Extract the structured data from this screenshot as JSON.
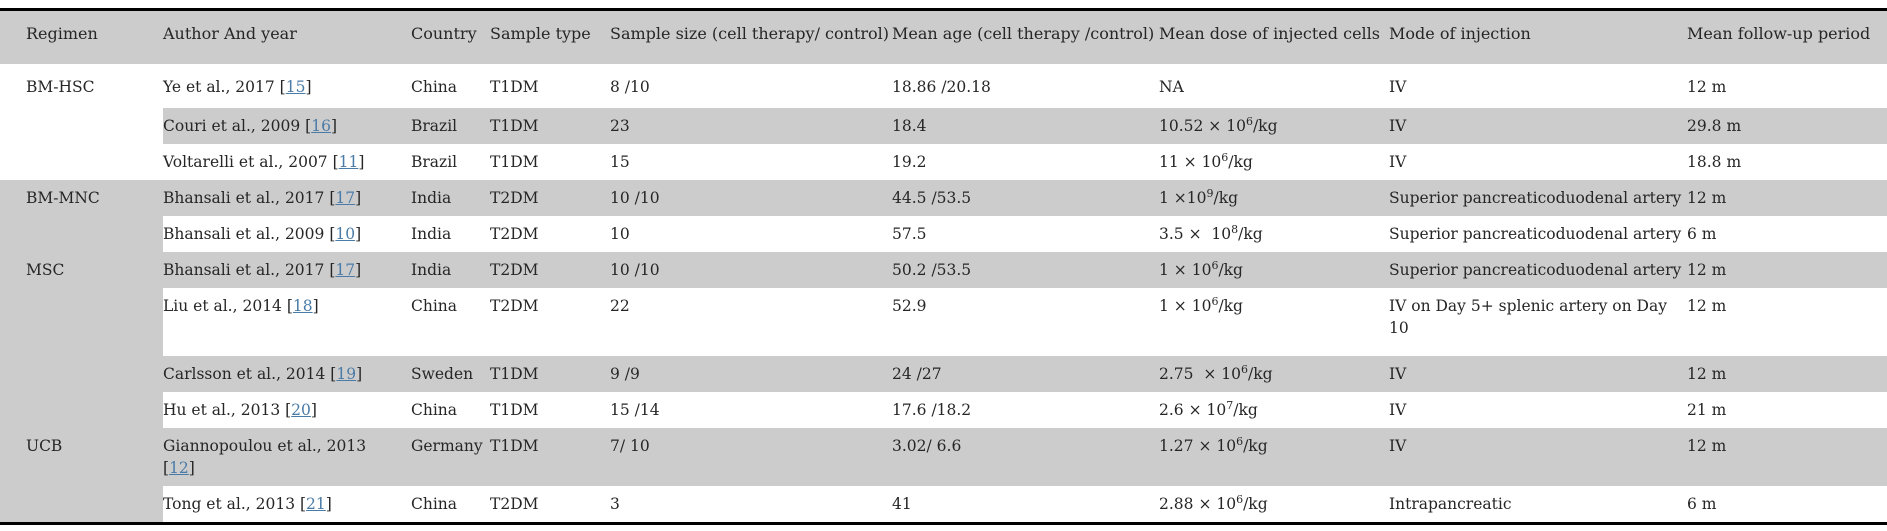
{
  "link_color": "#4a7ba6",
  "stripe_color": "#cccccc",
  "table": {
    "columns": [
      {
        "key": "regimen",
        "label": "Regimen"
      },
      {
        "key": "author",
        "label": "Author And year"
      },
      {
        "key": "country",
        "label": "Country"
      },
      {
        "key": "sample_type",
        "label": "Sample type"
      },
      {
        "key": "sample_size",
        "label": "Sample size (cell therapy/ control)"
      },
      {
        "key": "mean_age",
        "label": "Mean age (cell therapy /control)"
      },
      {
        "key": "mean_dose",
        "label": "Mean dose of injected cells"
      },
      {
        "key": "mode",
        "label": "Mode of injection"
      },
      {
        "key": "follow_up",
        "label": "Mean follow-up period"
      }
    ],
    "groups": [
      {
        "regimen": "BM-HSC",
        "regimen_shade": "white",
        "rows": [
          {
            "shade": "white",
            "author": "Ye et al., 2017",
            "ref": "15",
            "ref_break": false,
            "country": "China",
            "sample_type": "T1DM",
            "sample_size": "8 /10",
            "mean_age": "18.86 /20.18",
            "dose_base": "NA",
            "dose_exp": "",
            "dose_suffix": "",
            "mode": "IV",
            "mode2": "",
            "follow_up": "12 m"
          },
          {
            "shade": "gray",
            "author": "Couri et al., 2009",
            "ref": "16",
            "ref_break": false,
            "country": "Brazil",
            "sample_type": "T1DM",
            "sample_size": "23",
            "mean_age": "18.4",
            "dose_base": "10.52 × 10",
            "dose_exp": "6",
            "dose_suffix": "/kg",
            "mode": "IV",
            "mode2": "",
            "follow_up": "29.8 m"
          },
          {
            "shade": "white",
            "author": "Voltarelli et al., 2007",
            "ref": "11",
            "ref_break": false,
            "country": "Brazil",
            "sample_type": "T1DM",
            "sample_size": "15",
            "mean_age": "19.2",
            "dose_base": "11 × 10",
            "dose_exp": "6",
            "dose_suffix": "/kg",
            "mode": "IV",
            "mode2": "",
            "follow_up": "18.8 m"
          }
        ]
      },
      {
        "regimen": "BM-MNC",
        "regimen_shade": "gray",
        "rows": [
          {
            "shade": "gray",
            "author": "Bhansali et al., 2017",
            "ref": "17",
            "ref_break": false,
            "country": "India",
            "sample_type": "T2DM",
            "sample_size": "10 /10",
            "mean_age": "44.5 /53.5",
            "dose_base": "1 ×10",
            "dose_exp": "9",
            "dose_suffix": "/kg",
            "mode": "Superior pancreaticoduodenal artery",
            "mode2": "",
            "follow_up": "12 m"
          },
          {
            "shade": "white",
            "author": "Bhansali et al., 2009",
            "ref": "10",
            "ref_break": false,
            "country": "India",
            "sample_type": "T2DM",
            "sample_size": "10",
            "mean_age": "57.5",
            "dose_base": "3.5 ×  10",
            "dose_exp": "8",
            "dose_suffix": "/kg",
            "mode": "Superior pancreaticoduodenal artery",
            "mode2": "",
            "follow_up": "6 m"
          }
        ]
      },
      {
        "regimen": "MSC",
        "regimen_shade": "gray",
        "rows": [
          {
            "shade": "gray",
            "author": "Bhansali et al., 2017",
            "ref": "17",
            "ref_break": false,
            "country": "India",
            "sample_type": "T2DM",
            "sample_size": "10 /10",
            "mean_age": "50.2 /53.5",
            "dose_base": "1 × 10",
            "dose_exp": "6",
            "dose_suffix": "/kg",
            "mode": "Superior pancreaticoduodenal artery",
            "mode2": "",
            "follow_up": "12 m"
          },
          {
            "shade": "white",
            "author": "Liu et al., 2014",
            "ref": "18",
            "ref_break": false,
            "country": "China",
            "sample_type": "T2DM",
            "sample_size": "22",
            "mean_age": "52.9",
            "dose_base": "1 × 10",
            "dose_exp": "6",
            "dose_suffix": "/kg",
            "mode": "IV on Day 5+ splenic artery on Day",
            "mode2": "10",
            "follow_up": "12 m"
          },
          {
            "shade": "gray",
            "author": "Carlsson et al., 2014",
            "ref": "19",
            "ref_break": false,
            "country": "Sweden",
            "sample_type": "T1DM",
            "sample_size": "9 /9",
            "mean_age": "24 /27",
            "dose_base": "2.75  × 10",
            "dose_exp": "6",
            "dose_suffix": "/kg",
            "mode": "IV",
            "mode2": "",
            "follow_up": "12 m"
          },
          {
            "shade": "white",
            "author": "Hu et al., 2013",
            "ref": "20",
            "ref_break": false,
            "country": "China",
            "sample_type": "T1DM",
            "sample_size": "15 /14",
            "mean_age": "17.6 /18.2",
            "dose_base": "2.6 × 10",
            "dose_exp": "7",
            "dose_suffix": "/kg",
            "mode": "IV",
            "mode2": "",
            "follow_up": "21 m"
          }
        ]
      },
      {
        "regimen": "UCB",
        "regimen_shade": "gray",
        "rows": [
          {
            "shade": "gray",
            "author": "Giannopoulou et al., 2013",
            "ref": "12",
            "ref_break": true,
            "country": "Germany",
            "sample_type": "T1DM",
            "sample_size": "7/ 10",
            "mean_age": "3.02/ 6.6",
            "dose_base": "1.27 × 10",
            "dose_exp": "6",
            "dose_suffix": "/kg",
            "mode": "IV",
            "mode2": "",
            "follow_up": "12 m"
          },
          {
            "shade": "white",
            "author": "Tong et al., 2013",
            "ref": "21",
            "ref_break": false,
            "country": "China",
            "sample_type": "T2DM",
            "sample_size": "3",
            "mean_age": "41",
            "dose_base": "2.88 × 10",
            "dose_exp": "6",
            "dose_suffix": "/kg",
            "mode": "Intrapancreatic",
            "mode2": "",
            "follow_up": "6 m"
          }
        ]
      }
    ]
  }
}
